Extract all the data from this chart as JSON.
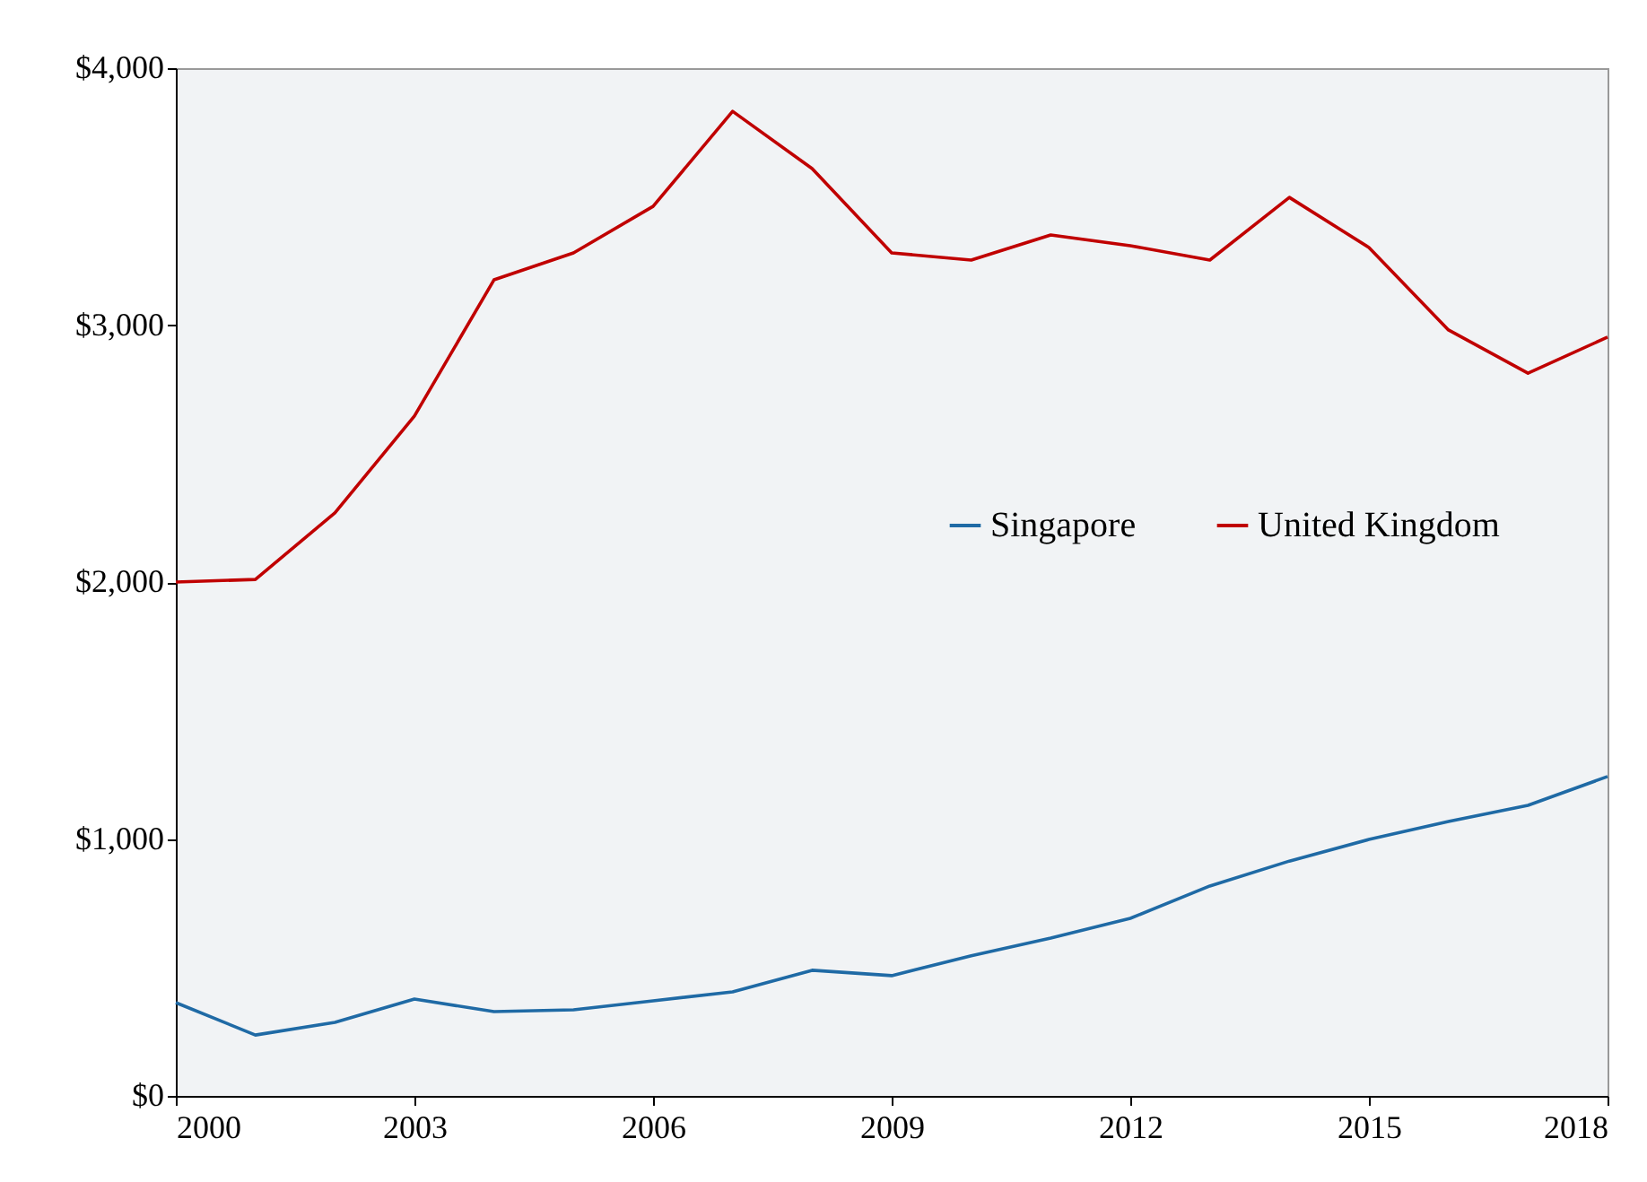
{
  "chart_data": {
    "type": "line",
    "x": [
      2000,
      2001,
      2002,
      2003,
      2004,
      2005,
      2006,
      2007,
      2008,
      2009,
      2010,
      2011,
      2012,
      2013,
      2014,
      2015,
      2016,
      2017,
      2018
    ],
    "series": [
      {
        "name": "Singapore",
        "color": "#1f6aa5",
        "values": [
          363,
          237,
          286,
          377,
          328,
          335,
          370,
          405,
          489,
          468,
          545,
          614,
          691,
          817,
          914,
          998,
          1068,
          1131,
          1243
        ]
      },
      {
        "name": "United Kingdom",
        "color": "#c00000",
        "values": [
          2000,
          2010,
          2269,
          2646,
          3176,
          3281,
          3462,
          3832,
          3609,
          3281,
          3253,
          3351,
          3309,
          3253,
          3497,
          3302,
          2981,
          2813,
          2953
        ]
      }
    ],
    "xlim": [
      2000,
      2018
    ],
    "xticks": [
      2000,
      2003,
      2006,
      2009,
      2012,
      2015,
      2018
    ],
    "ylim": [
      0,
      4000
    ],
    "yticks": [
      {
        "value": 0,
        "label": "$0"
      },
      {
        "value": 1000,
        "label": "$1,000"
      },
      {
        "value": 2000,
        "label": "$2,000"
      },
      {
        "value": 3000,
        "label": "$3,000"
      },
      {
        "value": 4000,
        "label": "$4,000"
      }
    ],
    "grid": false,
    "legend": "center",
    "marker": "none",
    "line_style": "solid"
  }
}
